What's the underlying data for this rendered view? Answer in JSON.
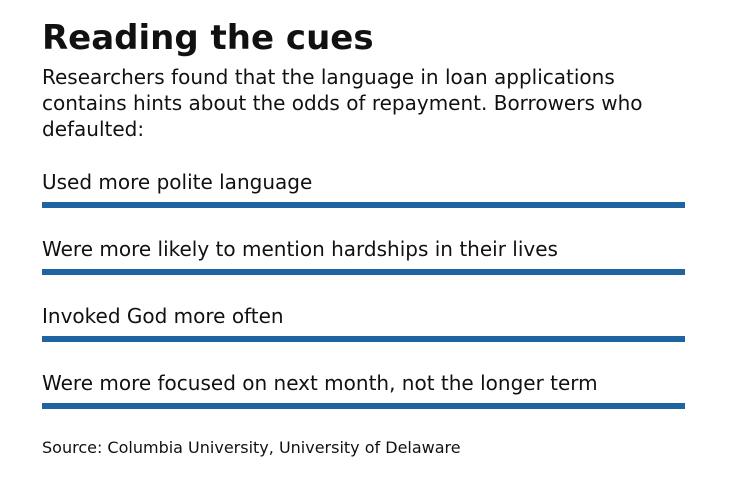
{
  "header": {
    "title": "Reading the cues",
    "subtitle": "Researchers found that the language in loan applications contains hints about the odds of repayment. Borrowers who defaulted:"
  },
  "items": [
    "Used more polite language",
    "Were more likely to mention hardships in their lives",
    "Invoked God more often",
    "Were more focused on next month, not the longer term"
  ],
  "source": "Source: Columbia University, University of Delaware"
}
